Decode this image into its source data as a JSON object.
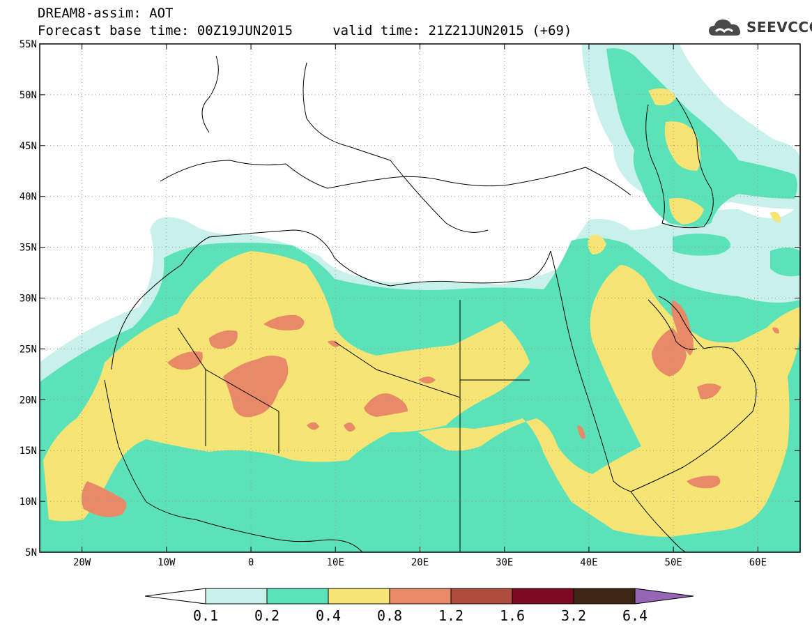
{
  "header": {
    "title_line1": "DREAM8-assim: AOT",
    "title_line2": "Forecast base time: 00Z19JUN2015     valid time: 21Z21JUN2015 (+69)"
  },
  "logo": {
    "text": "SEEVCCC",
    "icon": "cloud-icon"
  },
  "map": {
    "lon_range": [
      -25,
      65
    ],
    "lat_range": [
      5,
      55
    ],
    "grid": true,
    "x_ticks": [
      {
        "lon": -20,
        "label": "20W"
      },
      {
        "lon": -10,
        "label": "10W"
      },
      {
        "lon": 0,
        "label": "0"
      },
      {
        "lon": 10,
        "label": "10E"
      },
      {
        "lon": 20,
        "label": "20E"
      },
      {
        "lon": 30,
        "label": "30E"
      },
      {
        "lon": 40,
        "label": "40E"
      },
      {
        "lon": 50,
        "label": "50E"
      },
      {
        "lon": 60,
        "label": "60E"
      }
    ],
    "y_ticks": [
      {
        "lat": 55,
        "label": "55N"
      },
      {
        "lat": 50,
        "label": "50N"
      },
      {
        "lat": 45,
        "label": "45N"
      },
      {
        "lat": 40,
        "label": "40N"
      },
      {
        "lat": 35,
        "label": "35N"
      },
      {
        "lat": 30,
        "label": "30N"
      },
      {
        "lat": 25,
        "label": "25N"
      },
      {
        "lat": 20,
        "label": "20N"
      },
      {
        "lat": 15,
        "label": "15N"
      },
      {
        "lat": 10,
        "label": "10N"
      },
      {
        "lat": 5,
        "label": "5N"
      }
    ]
  },
  "colorbar": {
    "labels": [
      "0.1",
      "0.2",
      "0.4",
      "0.8",
      "1.2",
      "1.6",
      "3.2",
      "6.4"
    ],
    "colors": [
      "#ffffff",
      "#c7f1ea",
      "#5be2b9",
      "#f6e474",
      "#e88a67",
      "#b04c3e",
      "#7d0a22",
      "#3f2612",
      "#9466b3"
    ]
  },
  "colors": {
    "c1": "#c7f1ea",
    "c2": "#5be2b9",
    "c3": "#f6e474",
    "c4": "#e88a67"
  }
}
